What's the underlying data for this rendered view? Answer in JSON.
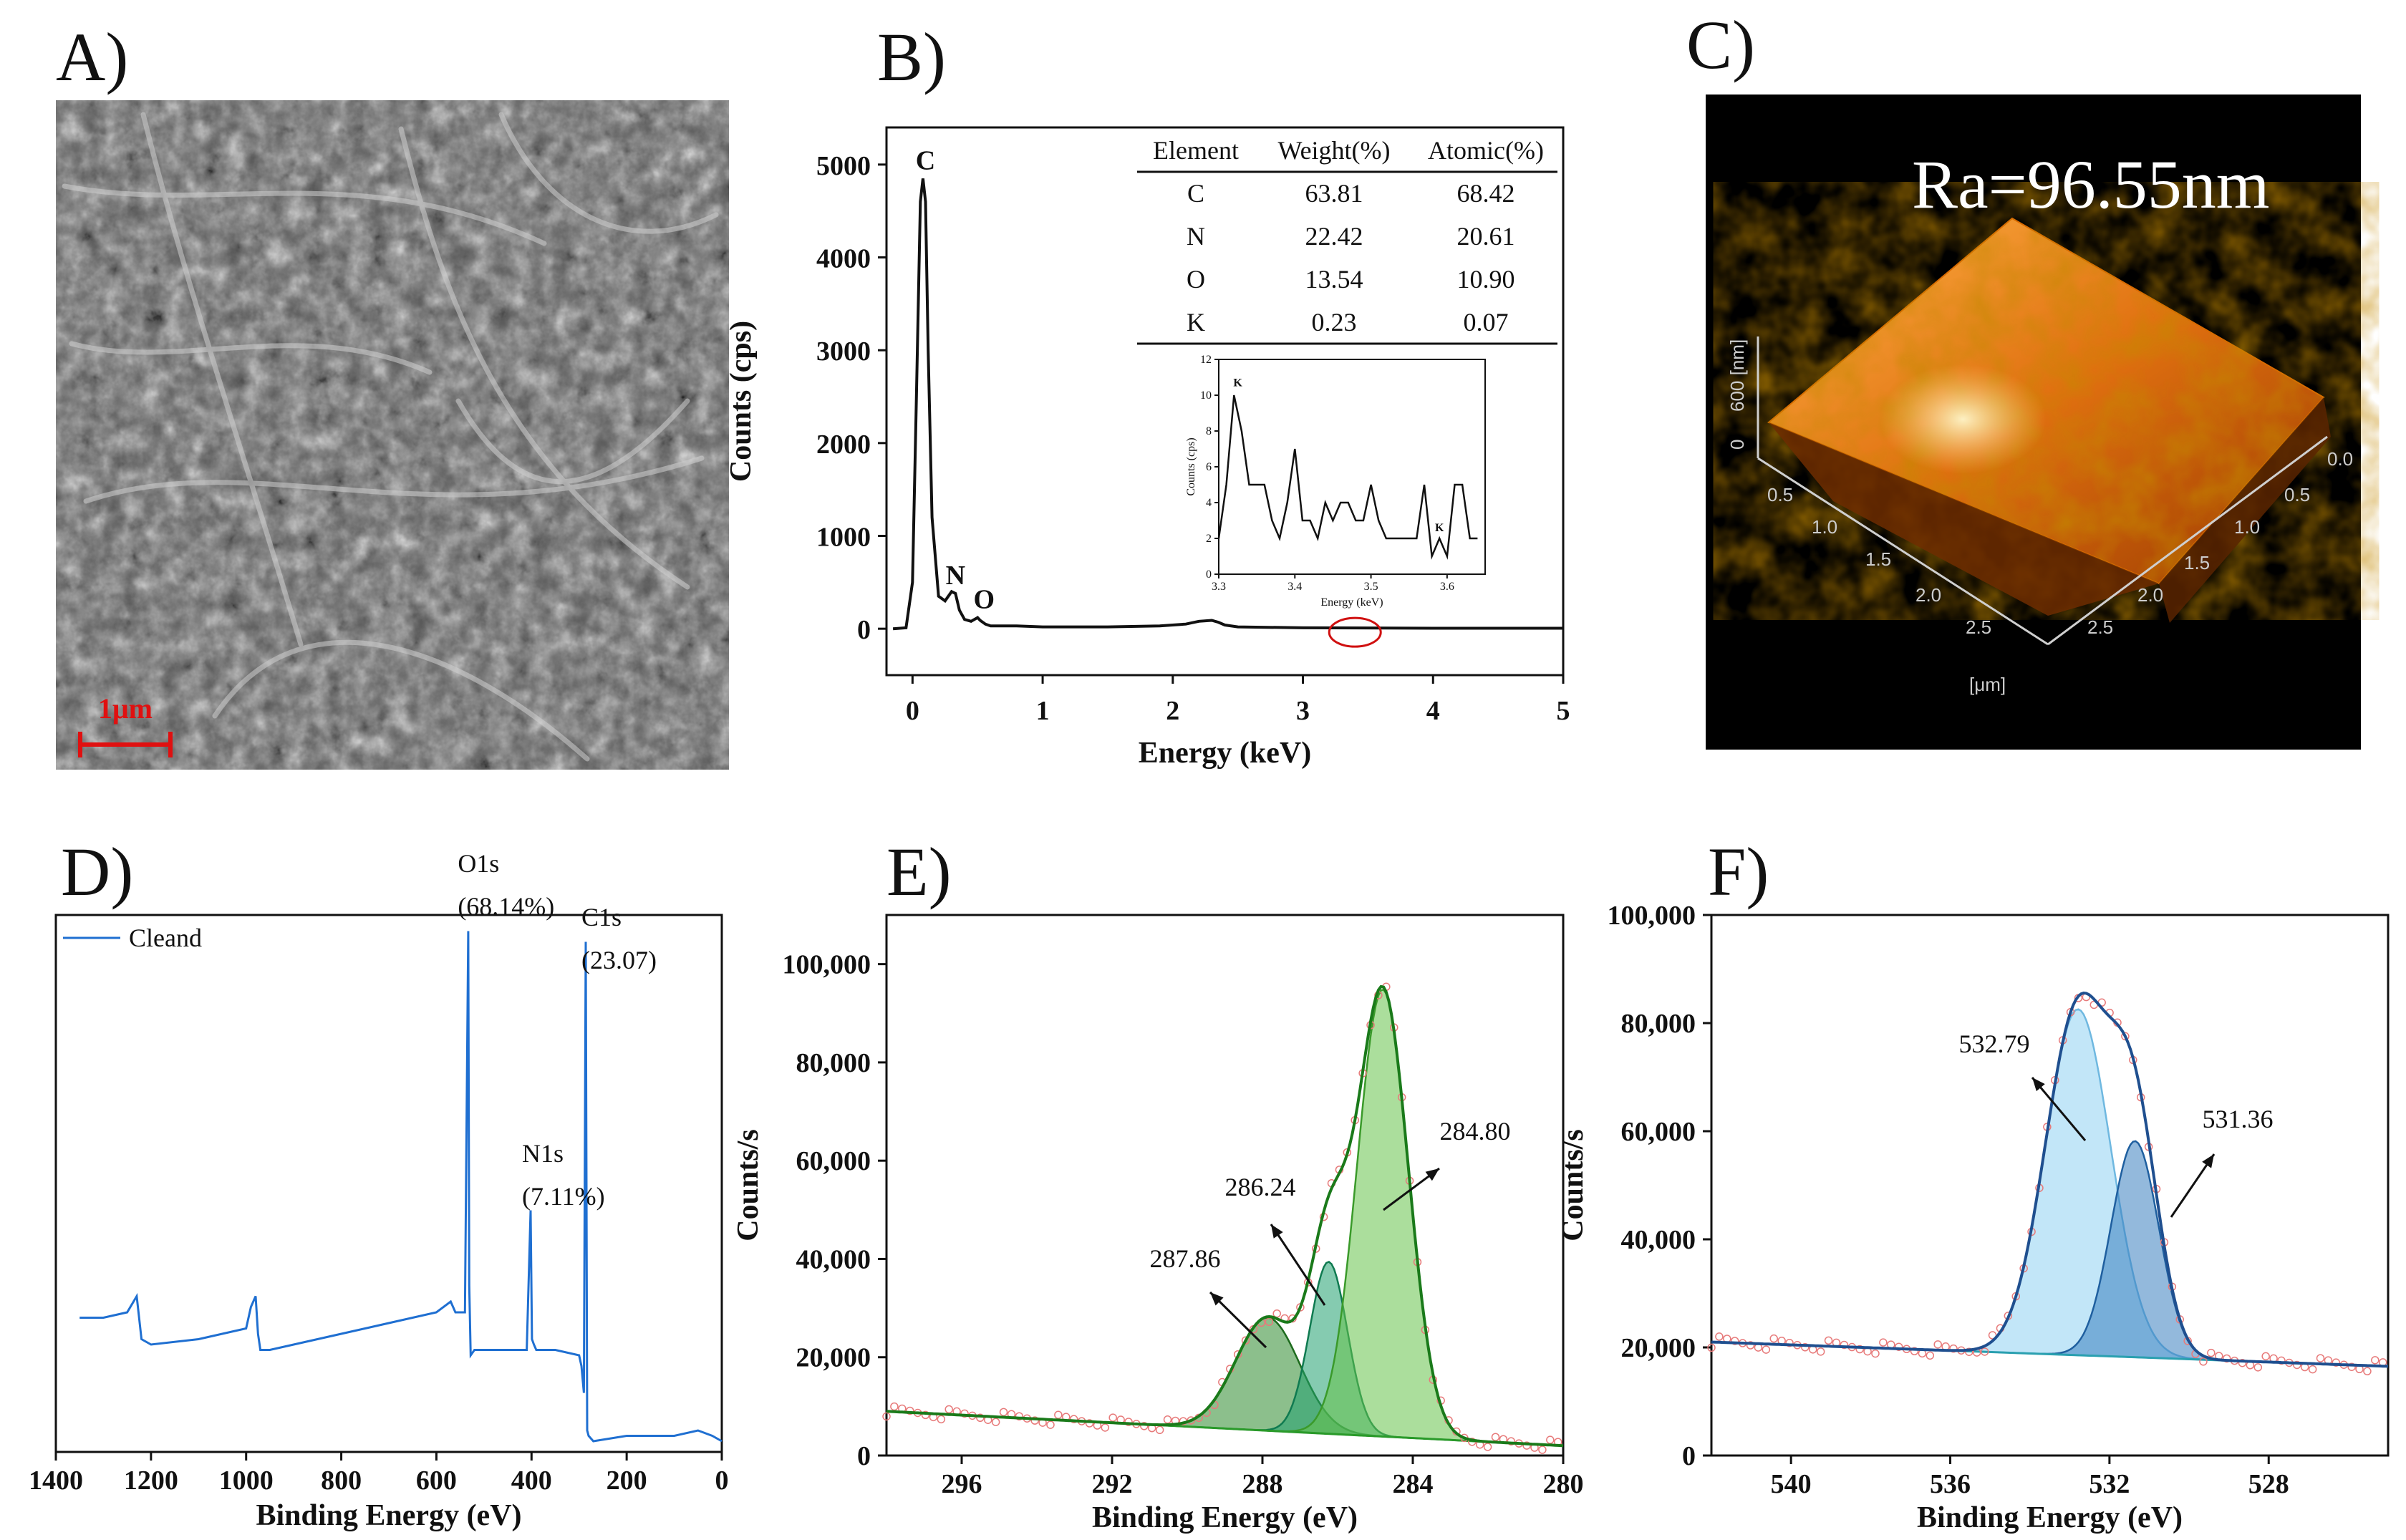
{
  "panels": {
    "A": {
      "label": "A)",
      "scale_bar": "1μm"
    },
    "B": {
      "label": "B)",
      "table": {
        "headers": [
          "Element",
          "Weight(%)",
          "Atomic(%)"
        ],
        "rows": [
          [
            "C",
            "63.81",
            "68.42"
          ],
          [
            "N",
            "22.42",
            "20.61"
          ],
          [
            "O",
            "13.54",
            "10.90"
          ],
          [
            "K",
            "0.23",
            "0.07"
          ]
        ]
      }
    },
    "C": {
      "label": "C)",
      "ra_text": "Ra=96.55nm",
      "z_label": "600 [nm]",
      "z_zero": "0",
      "unit_label": "[μm]",
      "left_ticks": [
        "0.5",
        "1.0",
        "1.5",
        "2.0",
        "2.5"
      ],
      "right_ticks": [
        "0.0",
        "0.5",
        "1.0",
        "1.5",
        "2.0",
        "2.5"
      ]
    },
    "D": {
      "label": "D)"
    },
    "E": {
      "label": "E)"
    },
    "F": {
      "label": "F)"
    }
  },
  "chart_data": [
    {
      "id": "B",
      "type": "line",
      "title": "",
      "xlabel": "Energy (keV)",
      "ylabel": "Counts (cps)",
      "xlim": [
        -0.2,
        5
      ],
      "ylim": [
        -500,
        5400
      ],
      "xticks": [
        0,
        1,
        2,
        3,
        4,
        5
      ],
      "yticks": [
        0,
        1000,
        2000,
        3000,
        4000,
        5000
      ],
      "series": [
        {
          "name": "EDS spectrum",
          "x": [
            -0.15,
            -0.05,
            0.0,
            0.03,
            0.06,
            0.08,
            0.1,
            0.12,
            0.15,
            0.2,
            0.25,
            0.3,
            0.33,
            0.36,
            0.4,
            0.45,
            0.5,
            0.52,
            0.56,
            0.6,
            0.8,
            1.0,
            1.5,
            1.9,
            2.1,
            2.2,
            2.3,
            2.35,
            2.4,
            2.5,
            3.0,
            4.0,
            5.0
          ],
          "y": [
            0,
            10,
            500,
            2500,
            4600,
            4850,
            4600,
            3000,
            1200,
            350,
            300,
            400,
            380,
            200,
            100,
            80,
            120,
            90,
            50,
            30,
            30,
            20,
            20,
            30,
            50,
            80,
            90,
            70,
            40,
            20,
            10,
            5,
            5
          ]
        }
      ],
      "annotations": [
        {
          "text": "C",
          "x": 0.1,
          "y": 4950
        },
        {
          "text": "N",
          "x": 0.33,
          "y": 480
        },
        {
          "text": "O",
          "x": 0.55,
          "y": 220
        }
      ],
      "highlight_ellipse": {
        "x": 3.4,
        "y": 0
      }
    },
    {
      "id": "B-inset",
      "type": "line",
      "xlabel": "Energy (keV)",
      "ylabel": "Counts (cps)",
      "xlim": [
        3.3,
        3.65
      ],
      "ylim": [
        0,
        12
      ],
      "xticks": [
        3.3,
        3.4,
        3.5,
        3.6
      ],
      "yticks": [
        0,
        2,
        4,
        6,
        8,
        10,
        12
      ],
      "series": [
        {
          "name": "K region",
          "x": [
            3.3,
            3.31,
            3.32,
            3.33,
            3.34,
            3.35,
            3.36,
            3.37,
            3.38,
            3.39,
            3.4,
            3.41,
            3.42,
            3.43,
            3.44,
            3.45,
            3.46,
            3.47,
            3.48,
            3.49,
            3.5,
            3.51,
            3.52,
            3.53,
            3.54,
            3.55,
            3.56,
            3.57,
            3.58,
            3.59,
            3.6,
            3.61,
            3.62,
            3.63,
            3.64
          ],
          "y": [
            2,
            5,
            10,
            8,
            5,
            5,
            5,
            3,
            2,
            4,
            7,
            3,
            3,
            2,
            4,
            3,
            4,
            4,
            3,
            3,
            5,
            3,
            2,
            2,
            2,
            2,
            2,
            5,
            1,
            2,
            1,
            5,
            5,
            2,
            2
          ]
        }
      ],
      "annotations": [
        {
          "text": "K",
          "x": 3.325,
          "y": 10.5
        },
        {
          "text": "K",
          "x": 3.59,
          "y": 2.4
        }
      ]
    },
    {
      "id": "D",
      "type": "line",
      "xlabel": "Binding Energy (eV)",
      "ylabel": "",
      "xlim": [
        1400,
        0
      ],
      "ylim": [
        0,
        100
      ],
      "xticks": [
        1400,
        1200,
        1000,
        800,
        600,
        400,
        200,
        0
      ],
      "legend": "Cleand",
      "series": [
        {
          "name": "Cleand",
          "x": [
            1350,
            1300,
            1250,
            1230,
            1220,
            1200,
            1100,
            1000,
            990,
            980,
            975,
            970,
            950,
            800,
            700,
            600,
            570,
            560,
            540,
            533,
            531,
            528,
            520,
            410,
            402,
            399,
            395,
            390,
            350,
            300,
            295,
            290,
            286,
            284,
            283,
            280,
            270,
            200,
            100,
            50,
            20,
            0
          ],
          "y": [
            25,
            25,
            26,
            29,
            21,
            20,
            21,
            23,
            27,
            29,
            22,
            19,
            19,
            22,
            24,
            26,
            28,
            26,
            26,
            97,
            31,
            18,
            19,
            19,
            45,
            21,
            20,
            19,
            19,
            18,
            16,
            11,
            95,
            36,
            4,
            3,
            2,
            3,
            3,
            4,
            3,
            2
          ]
        }
      ],
      "annotations": [
        {
          "text": "O1s",
          "x": 555,
          "y": 108
        },
        {
          "text": "(68.14%)",
          "x": 555,
          "y": 100
        },
        {
          "text": "C1s",
          "x": 295,
          "y": 98
        },
        {
          "text": "(23.07)",
          "x": 295,
          "y": 90
        },
        {
          "text": "N1s",
          "x": 420,
          "y": 54
        },
        {
          "text": "(7.11%)",
          "x": 420,
          "y": 46
        }
      ]
    },
    {
      "id": "E",
      "type": "line",
      "xlabel": "Binding Energy (eV)",
      "ylabel": "Counts/s",
      "xlim": [
        298,
        280
      ],
      "ylim": [
        0,
        110000
      ],
      "xticks": [
        296,
        292,
        288,
        284,
        280
      ],
      "yticks": [
        0,
        20000,
        40000,
        60000,
        80000,
        100000
      ],
      "yticklabels": [
        "0",
        "20,000",
        "40,000",
        "60,000",
        "80,000",
        "100,000"
      ],
      "baseline": {
        "x": [
          298,
          280
        ],
        "y": [
          9000,
          2000
        ]
      },
      "peaks": [
        {
          "center": 287.86,
          "amplitude": 23000,
          "sigma": 0.85,
          "label": "287.86"
        },
        {
          "center": 286.24,
          "amplitude": 35000,
          "sigma": 0.5,
          "label": "286.24"
        },
        {
          "center": 284.8,
          "amplitude": 91000,
          "sigma": 0.68,
          "label": "284.80"
        }
      ]
    },
    {
      "id": "F",
      "type": "line",
      "xlabel": "Binding Energy (eV)",
      "ylabel": "Counts/s",
      "xlim": [
        542,
        525
      ],
      "ylim": [
        0,
        100000
      ],
      "xticks": [
        540,
        536,
        532,
        528
      ],
      "yticks": [
        0,
        20000,
        40000,
        60000,
        80000,
        100000
      ],
      "yticklabels": [
        "0",
        "20,000",
        "40,000",
        "60,000",
        "80,000",
        "100,000"
      ],
      "baseline": {
        "x": [
          542,
          525
        ],
        "y": [
          21000,
          16500
        ]
      },
      "peaks": [
        {
          "center": 532.79,
          "amplitude": 64000,
          "sigma": 0.82,
          "label": "532.79"
        },
        {
          "center": 531.36,
          "amplitude": 40000,
          "sigma": 0.6,
          "label": "531.36"
        }
      ]
    }
  ]
}
